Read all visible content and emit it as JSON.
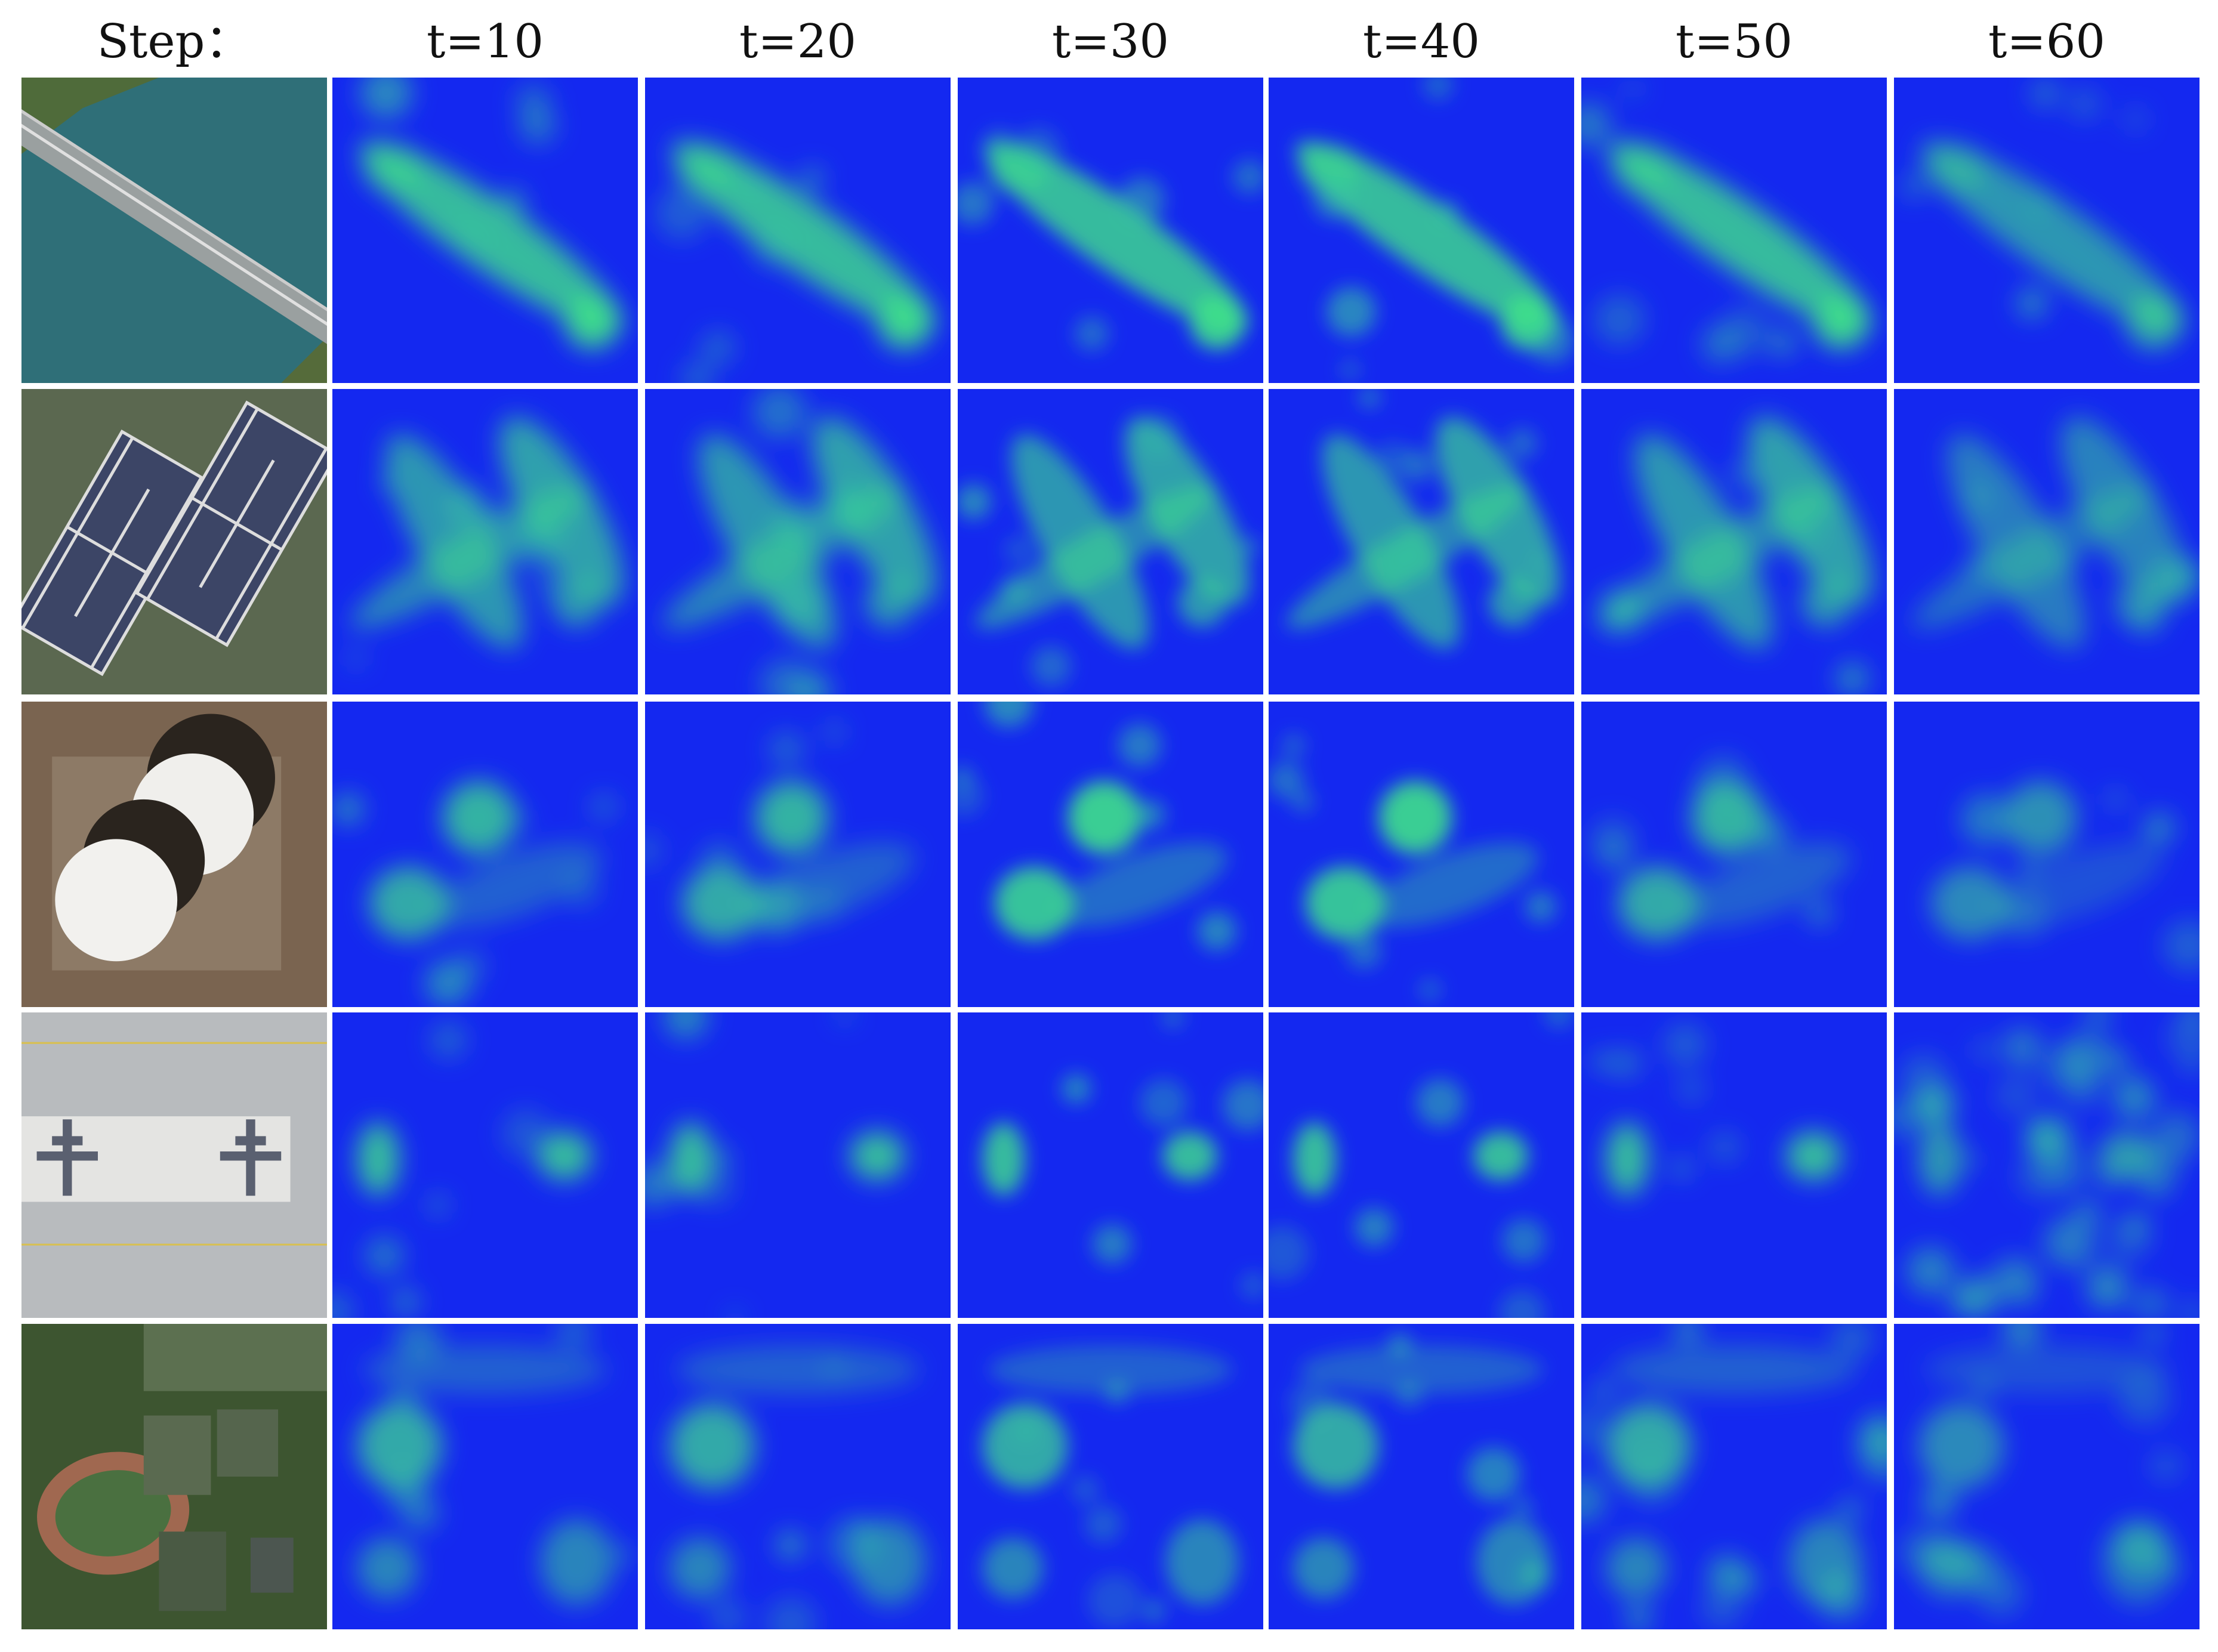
{
  "header": {
    "row_label": "Step：",
    "columns": [
      "t=10",
      "t=20",
      "t=30",
      "t=40",
      "t=50",
      "t=60"
    ]
  }
}
